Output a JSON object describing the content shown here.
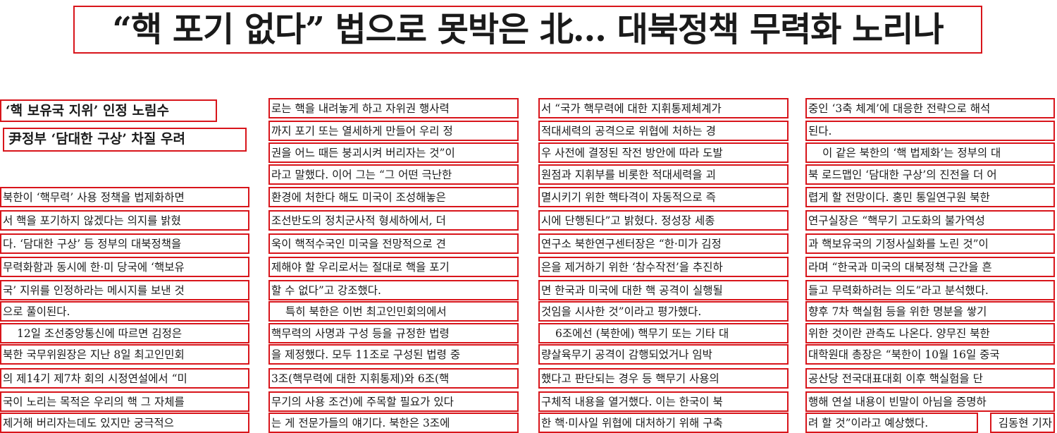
{
  "headline": "“핵 포기 없다” 법으로 못박은 北… 대북정책 무력화 노리나",
  "subheads": [
    "‘핵 보유국 지위’ 인정 노림수",
    "尹정부 ‘담대한 구상’ 차질 우려"
  ],
  "col1": [
    "북한이 ‘핵무력’ 사용 정책을 법제화하면",
    "서 핵을 포기하지 않겠다는 의지를 밝혔",
    "다. ‘담대한 구상’ 등 정부의 대북정책을",
    "무력화함과 동시에 한·미 당국에 ‘핵보유",
    "국’ 지위를 인정하라는 메시지를 보낸 것",
    "으로 풀이된다.",
    "12일 조선중앙통신에 따르면 김정은",
    "북한 국무위원장은 지난 8일 최고인민회",
    "의 제14기 제7차 회의 시정연설에서 “미",
    "국이 노리는 목적은 우리의 핵 그 자체를",
    "제거해 버리자는데도 있지만 궁극적으"
  ],
  "col2": [
    "로는 핵을 내려놓게 하고 자위권 행사력",
    "까지 포기 또는 열세하게 만들어 우리 정",
    "권을 어느 때든 붕괴시켜 버리자는 것”이",
    "라고 말했다. 이어 그는 “그 어떤 극난한",
    "환경에 처한다 해도 미국이 조성해놓은",
    "조선반도의 정치군사적 형세하에서, 더",
    "욱이 핵적수국인 미국을 전망적으로 견",
    "제해야 할 우리로서는 절대로 핵을 포기",
    "할 수 없다”고 강조했다.",
    "특히 북한은 이번 최고인민회의에서",
    "핵무력의 사명과 구성 등을 규정한 법령",
    "을 제정했다. 모두 11조로 구성된 법령 중",
    "3조(핵무력에 대한 지휘통제)와 6조(핵",
    "무기의 사용 조건)에 주목할 필요가 있다",
    "는 게 전문가들의 얘기다. 북한은 3조에"
  ],
  "col3": [
    "서 “국가 핵무력에 대한 지휘통제체계가",
    "적대세력의 공격으로 위협에 처하는 경",
    "우 사전에 결정된 작전 방안에 따라 도발",
    "원점과 지휘부를 비롯한 적대세력을 괴",
    "멸시키기 위한 핵타격이 자동적으로 즉",
    "시에 단행된다”고 밝혔다. 정성장 세종",
    "연구소 북한연구센터장은 “한·미가 김정",
    "은을 제거하기 위한 ‘참수작전’을 추진하",
    "면 한국과 미국에 대한 핵 공격이 실행될",
    "것임을 시사한 것”이라고 평가했다.",
    "6조에선 (북한에) 핵무기 또는 기타 대",
    "량살육무기 공격이 감행되었거나 임박",
    "했다고 판단되는 경우 등 핵무기 사용의",
    "구체적 내용을 열거했다. 이는 한국이 북",
    "한 핵·미사일 위협에 대처하기 위해 구축"
  ],
  "col4": [
    "중인 ‘3축 체계’에 대응한 전략으로 해석",
    "된다.",
    "이 같은 북한의 ‘핵 법제화’는 정부의 대",
    "북 로드맵인 ‘담대한 구상’의 진전을 더 어",
    "렵게 할 전망이다. 홍민 통일연구원 북한",
    "연구실장은 “핵무기 고도화의 불가역성",
    "과 핵보유국의 기정사실화를 노린 것”이",
    "라며 “한국과 미국의 대북정책 근간을 흔",
    "들고 무력화하려는 의도”라고 분석했다.",
    "향후 7차 핵실험 등을 위한 명분을 쌓기",
    "위한 것이란 관측도 나온다. 양무진 북한",
    "대학원대 총장은 “북한이 10월 16일 중국",
    "공산당 전국대표대회 이후 핵실험을 단",
    "행해 연설 내용이 빈말이 아님을 증명하",
    "려 할 것”이라고 예상했다.",
    "김동현 기자"
  ]
}
